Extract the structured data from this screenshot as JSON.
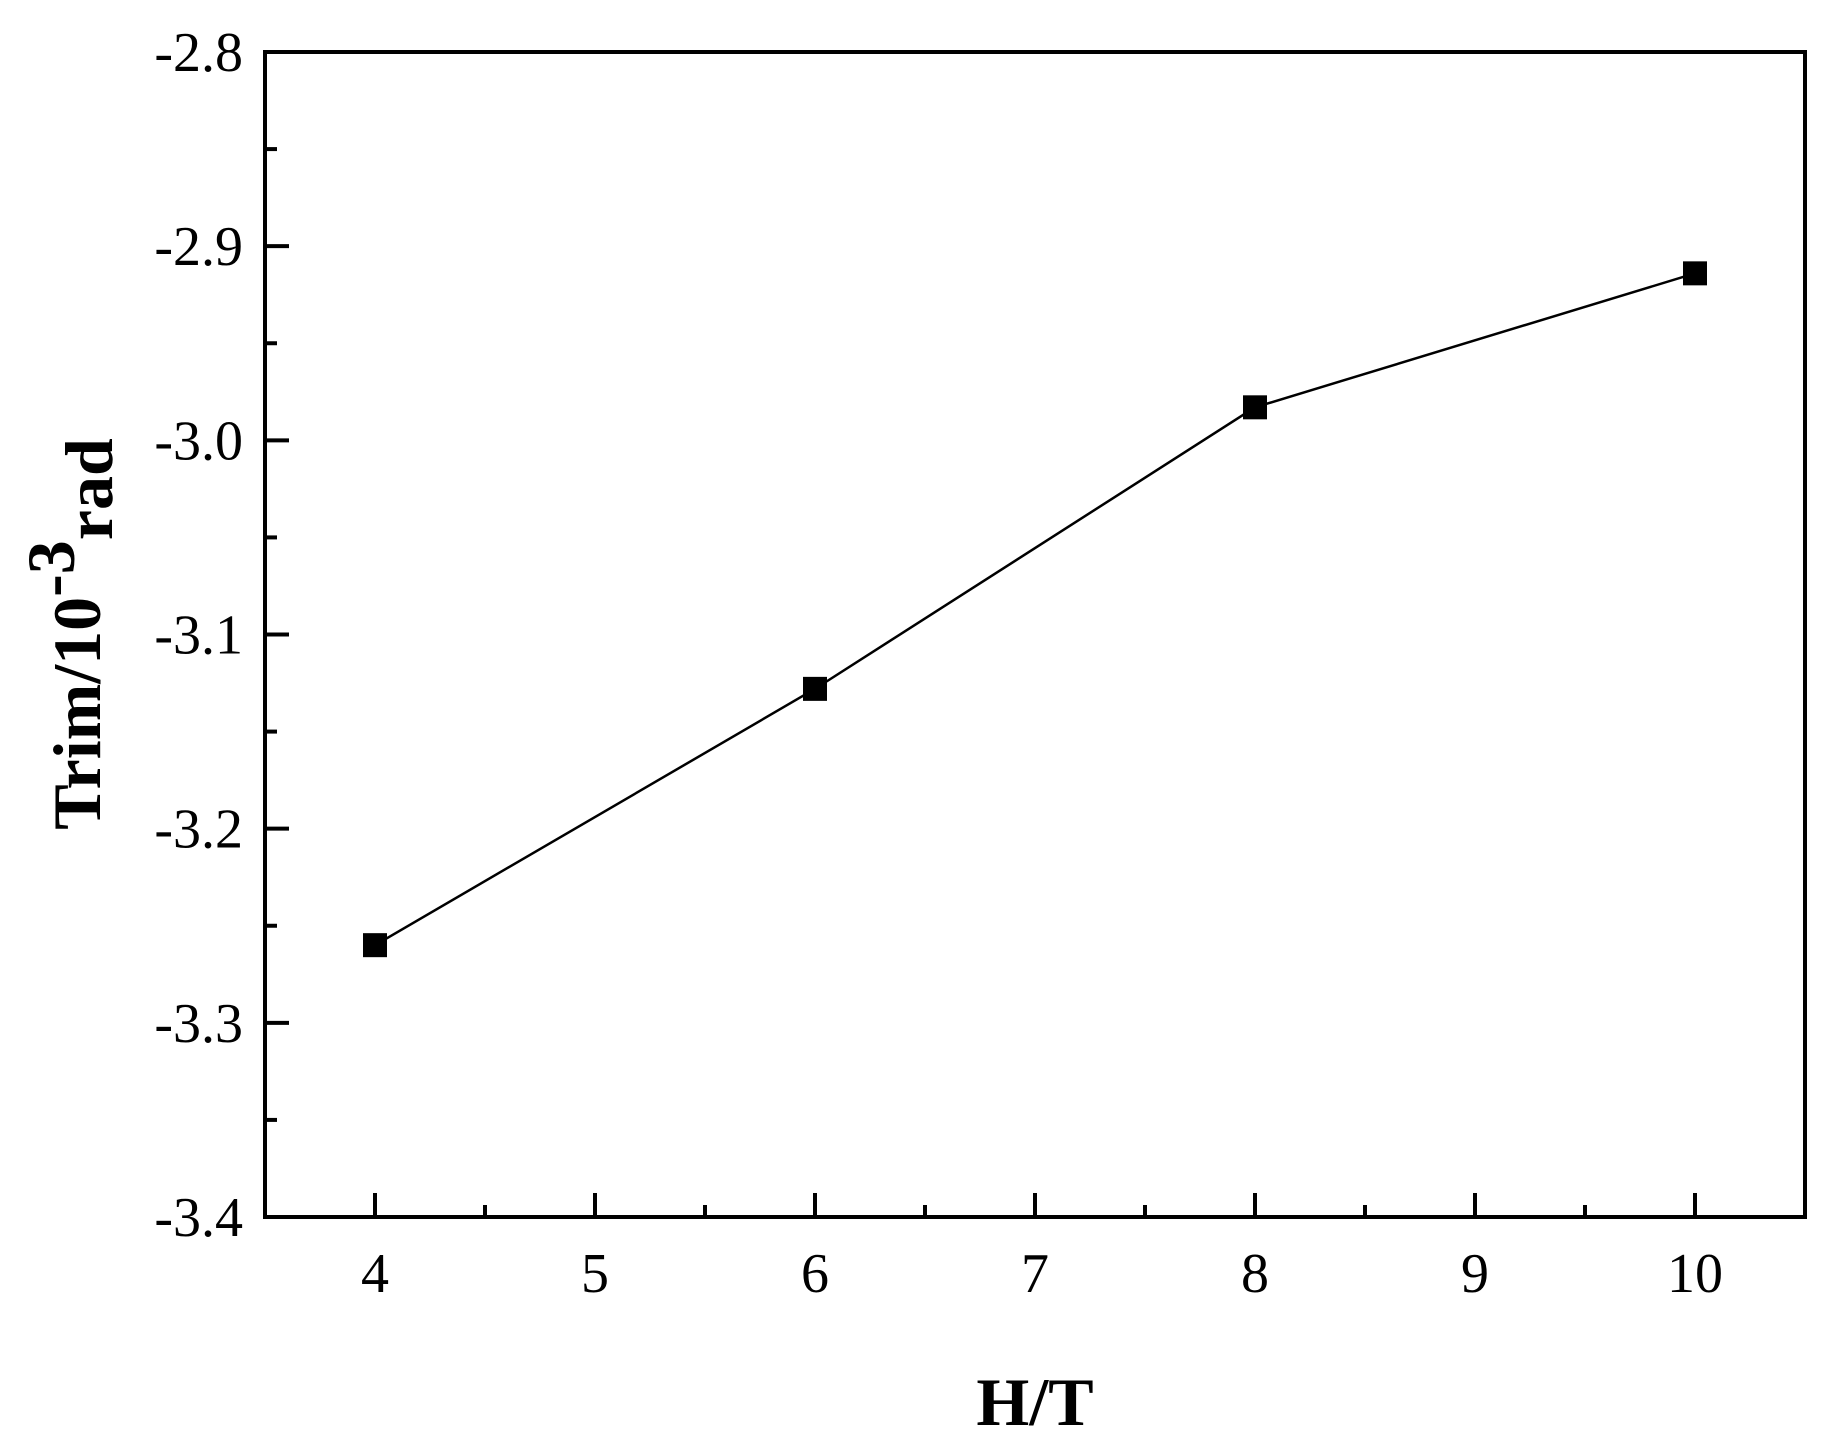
{
  "chart_data": {
    "type": "line",
    "title": "",
    "xlabel": "H/T",
    "ylabel_main": "Trim/10",
    "ylabel_sup": "-3",
    "ylabel_sub": "rad",
    "xlim": [
      3.5,
      10.5
    ],
    "ylim": [
      -3.4,
      -2.8
    ],
    "x_ticks": [
      4,
      5,
      6,
      7,
      8,
      9,
      10
    ],
    "y_ticks": [
      -3.4,
      -3.3,
      -3.2,
      -3.1,
      -3.0,
      -2.9,
      -2.8
    ],
    "x_tick_labels": [
      "4",
      "5",
      "6",
      "7",
      "8",
      "9",
      "10"
    ],
    "y_tick_labels": [
      "-3.4",
      "-3.3",
      "-3.2",
      "-3.1",
      "-3.0",
      "-2.9",
      "-2.8"
    ],
    "grid": false,
    "legend": "none",
    "series": [
      {
        "marker": "square",
        "color": "#000000",
        "x": [
          4,
          6,
          8,
          10
        ],
        "y": [
          -3.26,
          -3.128,
          -2.983,
          -2.914
        ]
      }
    ]
  }
}
